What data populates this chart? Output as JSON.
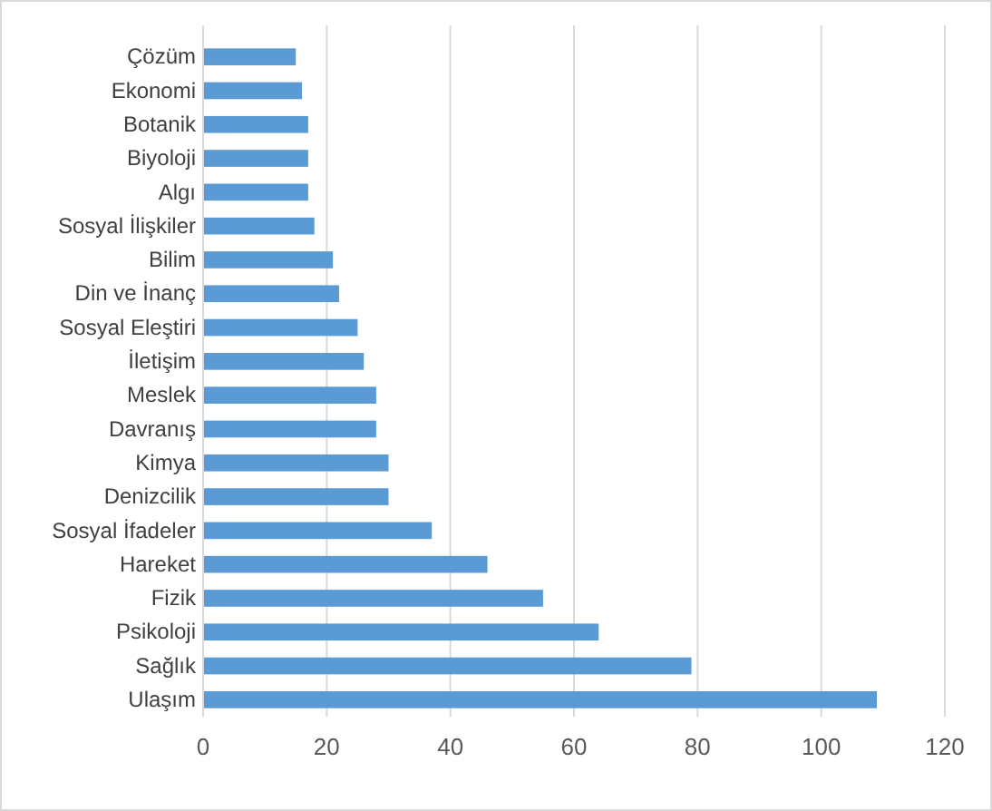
{
  "chart_data": {
    "type": "bar",
    "orientation": "horizontal",
    "categories": [
      "Çözüm",
      "Ekonomi",
      "Botanik",
      "Biyoloji",
      "Algı",
      "Sosyal İlişkiler",
      "Bilim",
      "Din ve İnanç",
      "Sosyal Eleştiri",
      "İletişim",
      "Meslek",
      "Davranış",
      "Kimya",
      "Denizcilik",
      "Sosyal İfadeler",
      "Hareket",
      "Fizik",
      "Psikoloji",
      "Sağlık",
      "Ulaşım"
    ],
    "values": [
      15,
      16,
      17,
      17,
      17,
      18,
      21,
      22,
      25,
      26,
      28,
      28,
      30,
      30,
      37,
      46,
      55,
      64,
      79,
      109
    ],
    "color": "#5b9bd5",
    "xlim": [
      0,
      120
    ],
    "xticks": [
      0,
      20,
      40,
      60,
      80,
      100,
      120
    ],
    "grid": "x"
  }
}
